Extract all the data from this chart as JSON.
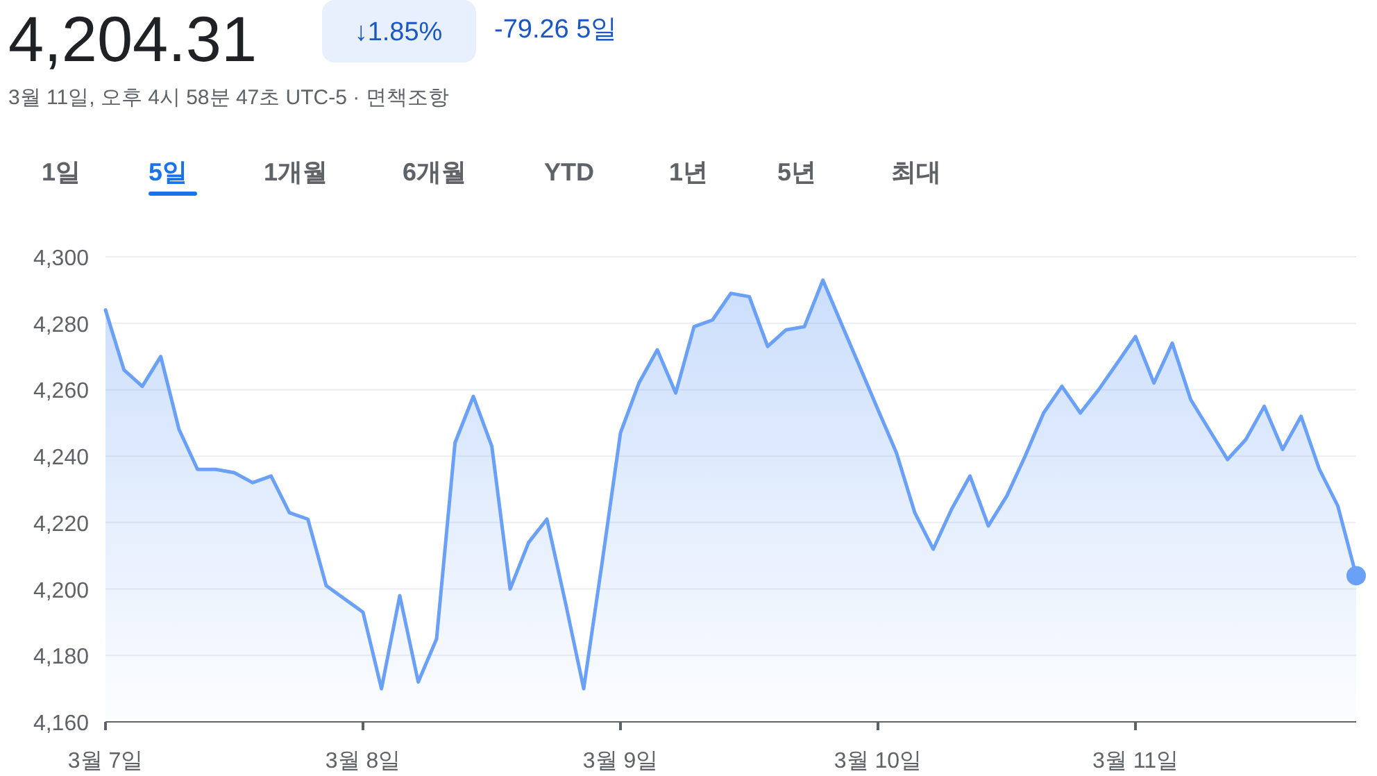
{
  "chart_data": {
    "type": "area",
    "title": "4,204.31",
    "subtitle": "3월 11일, 오후 4시 58분 47초 UTC-5 · 면책조항",
    "annotations": [
      "↓1.85%",
      "-79.26 5일",
      "1일",
      "5일",
      "1개월",
      "6개월",
      "YTD",
      "1년",
      "5년",
      "최대"
    ],
    "categories": [
      "3월 7일",
      null,
      null,
      null,
      null,
      null,
      null,
      null,
      null,
      null,
      null,
      null,
      null,
      null,
      "3월 8일",
      null,
      null,
      null,
      null,
      null,
      null,
      null,
      null,
      null,
      null,
      null,
      null,
      null,
      "3월 9일",
      null,
      null,
      null,
      null,
      null,
      null,
      null,
      null,
      null,
      null,
      null,
      null,
      null,
      "3월 10일",
      null,
      null,
      null,
      null,
      null,
      null,
      null,
      null,
      null,
      null,
      null,
      null,
      null,
      "3월 11일",
      null,
      null,
      null,
      null,
      null,
      null,
      null,
      null,
      null,
      null,
      null,
      null
    ],
    "series": [
      {
        "color": "#6aa0f5",
        "values": [
          4284,
          4266,
          4261,
          4270,
          4248,
          4236,
          4236,
          4235,
          4232,
          4234,
          4223,
          4221,
          4201,
          4197,
          4193,
          4170,
          4198,
          4172,
          4185,
          4244,
          4258,
          4243,
          4200,
          4214,
          4221,
          4196,
          4170,
          4208,
          4247,
          4262,
          4272,
          4259,
          4279,
          4281,
          4289,
          4288,
          4273,
          4278,
          4279,
          4293,
          4280,
          4267,
          4254,
          4241,
          4223,
          4212,
          4224,
          4234,
          4219,
          4228,
          4240,
          4253,
          4261,
          4253,
          4260,
          4268,
          4276,
          4262,
          4274,
          4257,
          4248,
          4239,
          4245,
          4255,
          4242,
          4252,
          4236,
          4225,
          4204
        ]
      },
      {
        "type": "scatter",
        "color": "#6aa0f5",
        "values": [
          null,
          null,
          null,
          null,
          null,
          null,
          null,
          null,
          null,
          null,
          null,
          null,
          null,
          null,
          null,
          null,
          null,
          null,
          null,
          null,
          null,
          null,
          null,
          null,
          null,
          null,
          null,
          null,
          null,
          null,
          null,
          null,
          null,
          null,
          null,
          null,
          null,
          null,
          null,
          null,
          null,
          null,
          null,
          null,
          null,
          null,
          null,
          null,
          null,
          null,
          null,
          null,
          null,
          null,
          null,
          null,
          null,
          null,
          null,
          null,
          null,
          null,
          null,
          null,
          null,
          null,
          null,
          null,
          4204
        ]
      }
    ],
    "ylim": [
      4160,
      4300
    ],
    "yticks": [
      {
        "value": 4160,
        "label": "4,160"
      },
      {
        "value": 4180,
        "label": "4,180"
      },
      {
        "value": 4200,
        "label": "4,200"
      },
      {
        "value": 4220,
        "label": "4,220"
      },
      {
        "value": 4240,
        "label": "4,240"
      },
      {
        "value": 4260,
        "label": "4,260"
      },
      {
        "value": 4280,
        "label": "4,280"
      },
      {
        "value": 4300,
        "label": "4,300"
      }
    ],
    "grid": "y"
  }
}
